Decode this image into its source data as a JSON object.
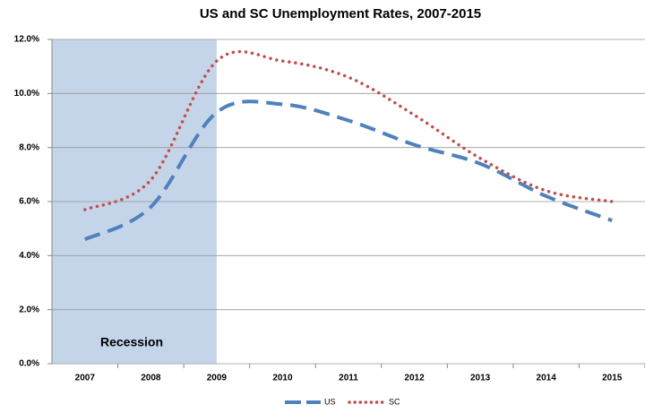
{
  "chart_data": {
    "type": "line",
    "title": "US and SC Unemployment Rates, 2007-2015",
    "annotation": "Recession",
    "shaded_region": {
      "label": "Recession",
      "to": "2009"
    },
    "categories": [
      "2007",
      "2008",
      "2009",
      "2010",
      "2011",
      "2012",
      "2013",
      "2014",
      "2015"
    ],
    "series": [
      {
        "name": "US",
        "color": "#4f81bd",
        "style": "dashed",
        "values": [
          4.6,
          5.8,
          9.3,
          9.6,
          9.0,
          8.1,
          7.4,
          6.2,
          5.3
        ]
      },
      {
        "name": "SC",
        "color": "#c0504d",
        "style": "dotted",
        "values": [
          5.7,
          6.8,
          11.2,
          11.2,
          10.6,
          9.2,
          7.6,
          6.4,
          6.0
        ]
      }
    ],
    "ylim": [
      0,
      12
    ],
    "yticks": [
      {
        "value": 0,
        "label": "0.0%"
      },
      {
        "value": 2,
        "label": "2.0%"
      },
      {
        "value": 4,
        "label": "4.0%"
      },
      {
        "value": 6,
        "label": "6.0%"
      },
      {
        "value": 8,
        "label": "8.0%"
      },
      {
        "value": 10,
        "label": "10.0%"
      },
      {
        "value": 12,
        "label": "12.0%"
      }
    ],
    "grid": true,
    "legend": "bottom"
  }
}
